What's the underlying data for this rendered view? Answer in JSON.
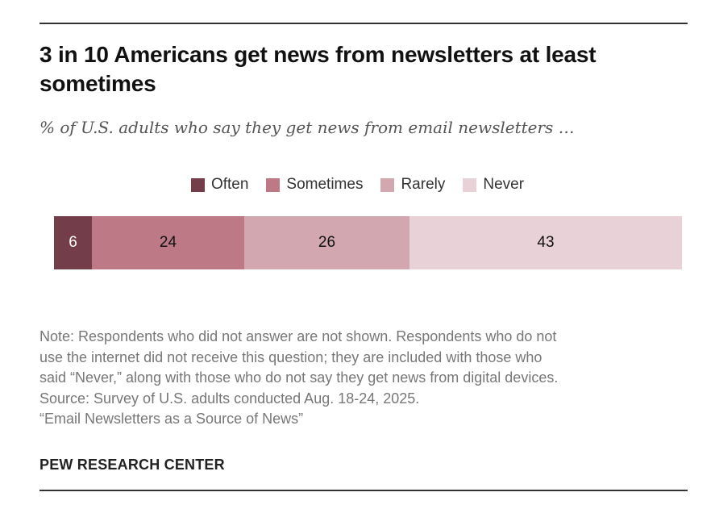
{
  "chart_data": {
    "type": "bar",
    "orientation": "horizontal-stacked",
    "title": "3 in 10 Americans get news from newsletters at least sometimes",
    "subtitle": "% of U.S. adults who say they get news from email newsletters …",
    "categories": [
      "U.S. adults"
    ],
    "series": [
      {
        "name": "Often",
        "values": [
          6
        ],
        "color": "#733e4a",
        "label_color": "#ffffff"
      },
      {
        "name": "Sometimes",
        "values": [
          24
        ],
        "color": "#bd7a86",
        "label_color": "#111111"
      },
      {
        "name": "Rarely",
        "values": [
          26
        ],
        "color": "#d2a7b0",
        "label_color": "#111111"
      },
      {
        "name": "Never",
        "values": [
          43
        ],
        "color": "#e9d2d7",
        "label_color": "#111111"
      }
    ],
    "legend_position": "top-center",
    "xlabel": "",
    "ylabel": "",
    "xlim": [
      0,
      99
    ],
    "grid": false
  },
  "notes": [
    "Note: Respondents who did not answer are not shown. Respondents who do not",
    "use the internet did not receive this question; they are included with those who",
    "said “Never,” along with those who do not say they get news from digital devices.",
    "Source: Survey of U.S. adults conducted Aug. 18-24, 2025.",
    "“Email Newsletters as a Source of News”"
  ],
  "footer": "PEW RESEARCH CENTER"
}
